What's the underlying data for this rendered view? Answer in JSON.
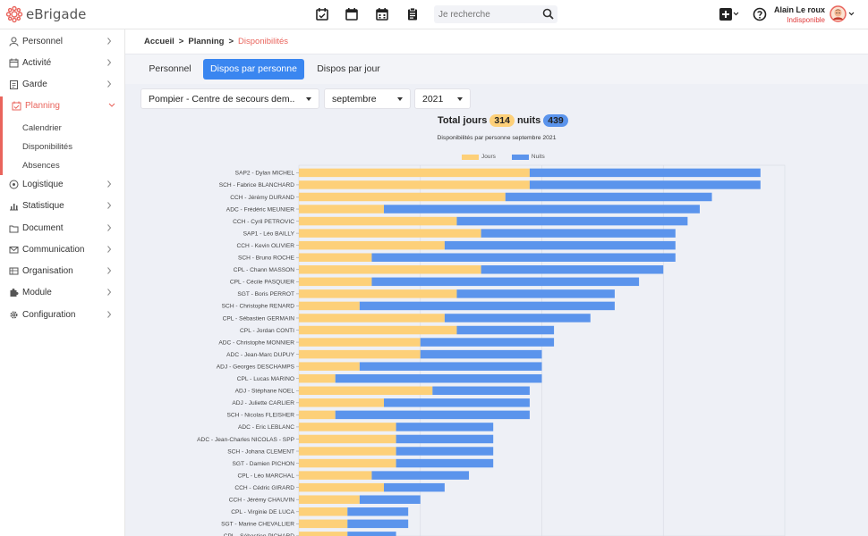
{
  "app": {
    "logo_text": "eBrigade",
    "brand_color": "#e9645c"
  },
  "topbar": {
    "icons": [
      "calendar-check-icon",
      "calendar-icon",
      "calendar-grid-icon",
      "clipboard-icon"
    ],
    "search_placeholder": "Je recherche",
    "user": {
      "name": "Alain Le roux",
      "status": "Indisponible"
    }
  },
  "sidebar": {
    "items": [
      {
        "label": "Personnel",
        "icon": "user-icon"
      },
      {
        "label": "Activité",
        "icon": "calendar-icon"
      },
      {
        "label": "Garde",
        "icon": "clipboard-icon"
      },
      {
        "label": "Planning",
        "icon": "calendar-check-icon",
        "active": true
      },
      {
        "label": "Logistique",
        "icon": "target-icon"
      },
      {
        "label": "Statistique",
        "icon": "chart-icon"
      },
      {
        "label": "Document",
        "icon": "folder-icon"
      },
      {
        "label": "Communication",
        "icon": "envelope-icon"
      },
      {
        "label": "Organisation",
        "icon": "org-icon"
      },
      {
        "label": "Module",
        "icon": "puzzle-icon"
      },
      {
        "label": "Configuration",
        "icon": "gear-icon"
      }
    ],
    "planning_sub": [
      "Calendrier",
      "Disponibilités",
      "Absences"
    ]
  },
  "breadcrumb": {
    "home": "Accueil",
    "section": "Planning",
    "current": "Disponibilités"
  },
  "tabs": [
    "Personnel",
    "Dispos par personne",
    "Dispos par jour"
  ],
  "filters": {
    "unit": "Pompier - Centre de secours dem..",
    "month": "septembre",
    "year": "2021"
  },
  "totals": {
    "label_days": "Total jours",
    "days": "314",
    "label_nights": "nuits",
    "nights": "439"
  },
  "chart_data": {
    "type": "bar",
    "orientation": "horizontal",
    "stacked": true,
    "title": "Disponibilités par personne septembre 2021",
    "legend": "top-center",
    "colors": {
      "Jours": "#fdd079",
      "Nuits": "#5b94ec"
    },
    "categories": [
      "SAP2 - Dylan MICHEL",
      "SCH - Fabrice BLANCHARD",
      "CCH - Jérémy DURAND",
      "ADC - Frédéric MEUNIER",
      "CCH - Cyril PETROVIC",
      "SAP1 - Léo BAILLY",
      "CCH - Kevin OLIVIER",
      "SCH - Bruno ROCHE",
      "CPL - Chann MASSON",
      "CPL - Cécile PASQUIER",
      "SGT - Boris PERROT",
      "SCH - Christophe RENARD",
      "CPL - Sébastien GERMAIN",
      "CPL - Jordan CONTI",
      "ADC - Christophe MONNIER",
      "ADC - Jean-Marc DUPUY",
      "ADJ - Georges DESCHAMPS",
      "CPL - Lucas MARINO",
      "ADJ - Stéphane NOEL",
      "ADJ - Juliette CARLIER",
      "SCH - Nicolas FLEISHER",
      "ADC - Eric LEBLANC",
      "ADC - Jean-Charles NICOLAS - SPP",
      "SCH - Johana CLEMENT",
      "SGT - Damien PICHON",
      "CPL - Léo MARCHAL",
      "CCH - Cédric GIRARD",
      "CCH - Jérémy CHAUVIN",
      "CPL - Virginie DE LUCA",
      "SGT - Marine CHEVALLIER",
      "CPL - Sébastien PICHARD"
    ],
    "series": [
      {
        "name": "Jours",
        "values": [
          19,
          19,
          17,
          7,
          13,
          15,
          12,
          6,
          15,
          6,
          13,
          5,
          12,
          13,
          10,
          10,
          5,
          3,
          11,
          7,
          3,
          8,
          8,
          8,
          8,
          6,
          7,
          5,
          4,
          4,
          4
        ]
      },
      {
        "name": "Nuits",
        "values": [
          19,
          19,
          17,
          26,
          19,
          16,
          19,
          25,
          15,
          22,
          13,
          21,
          12,
          8,
          11,
          10,
          15,
          17,
          8,
          12,
          16,
          8,
          8,
          8,
          8,
          8,
          5,
          5,
          5,
          5,
          4
        ]
      }
    ],
    "xlim": [
      0,
      40
    ]
  }
}
